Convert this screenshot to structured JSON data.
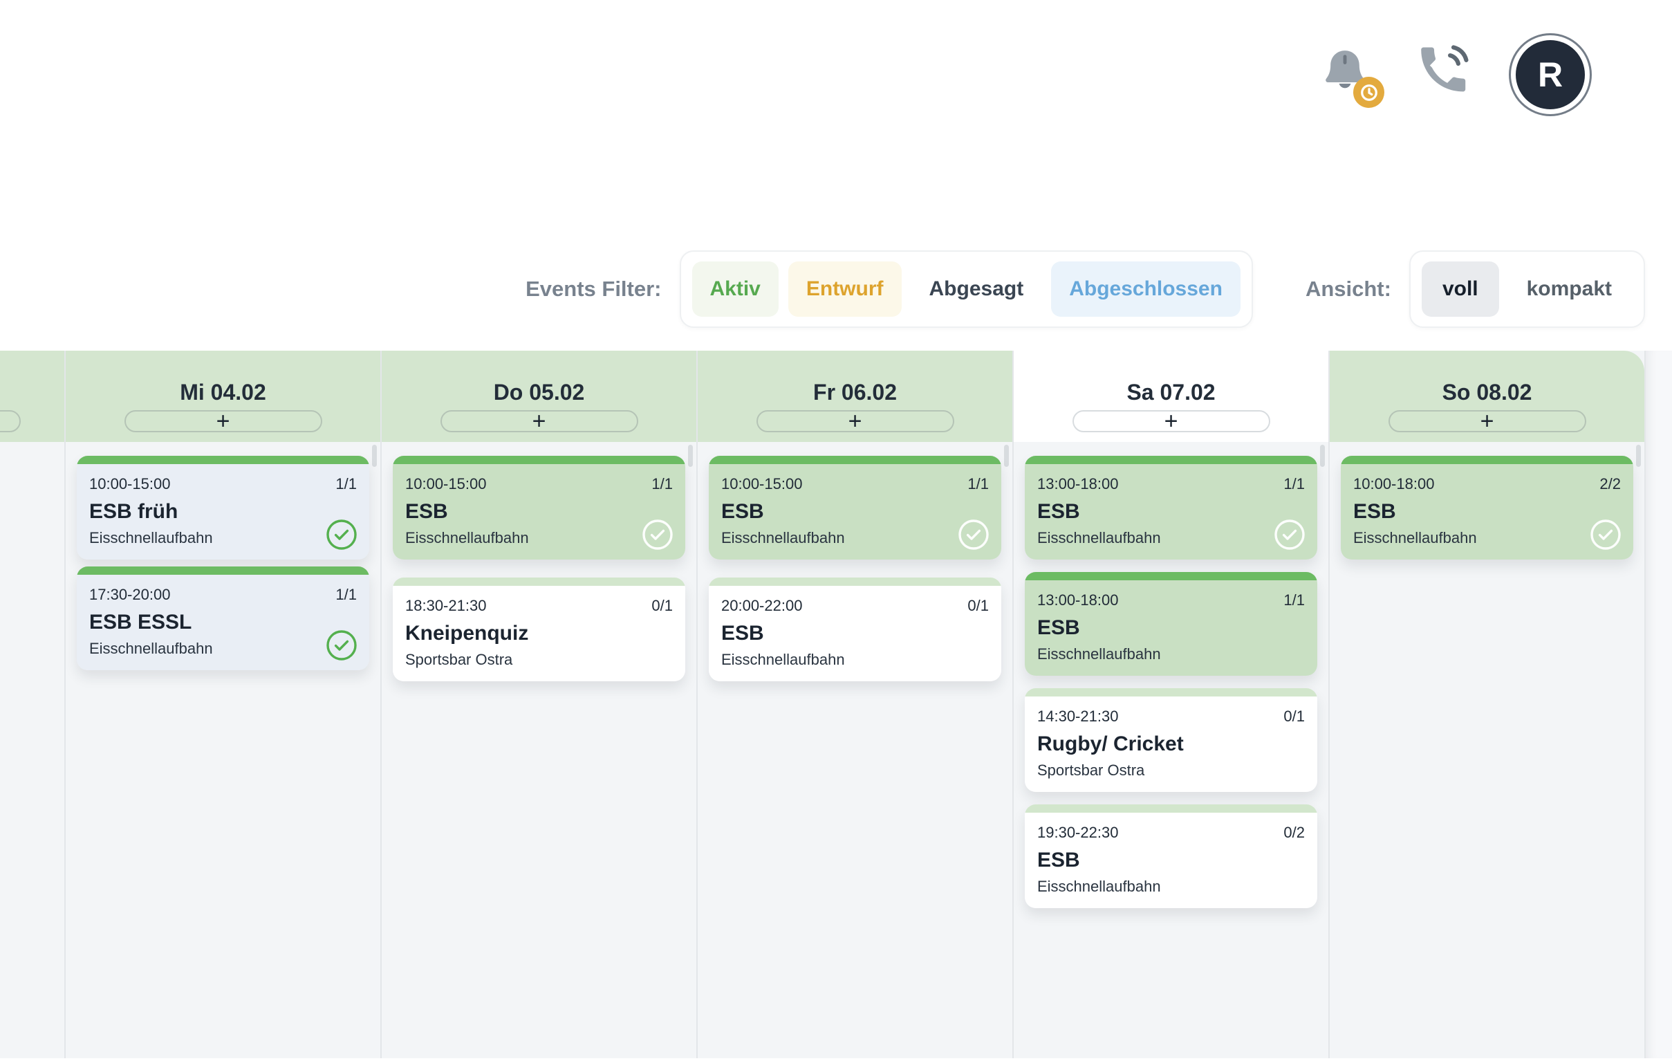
{
  "topbar": {
    "avatar_initial": "R",
    "icons": [
      {
        "name": "bell-icon",
        "badge": "clock-badge",
        "badge_color": "#e3aa3e"
      },
      {
        "name": "phone-waves-icon"
      },
      {
        "name": "avatar-circle"
      }
    ]
  },
  "filter_bar": {
    "events_filter_label": "Events Filter:",
    "filters": [
      {
        "label": "Aktiv",
        "text_color": "#56a94f",
        "bg_color": "#f3f7ee"
      },
      {
        "label": "Entwurf",
        "text_color": "#dda32d",
        "bg_color": "#fcf8e9"
      },
      {
        "label": "Abgesagt",
        "text_color": "#3a4552",
        "bg_color": "transparent"
      },
      {
        "label": "Abgeschlossen",
        "text_color": "#66a7da",
        "bg_color": "#eaf3fb"
      }
    ],
    "ansicht_label": "Ansicht:",
    "view_options": [
      {
        "label": "voll",
        "selected": true
      },
      {
        "label": "kompakt",
        "selected": false
      }
    ]
  },
  "calendar": {
    "add_button_label": "+",
    "days": [
      {
        "label": "",
        "partial": true,
        "today": false,
        "events": []
      },
      {
        "label": "Mi 04.02",
        "today": false,
        "events": [
          {
            "time": "10:00-15:00",
            "count": "1/1",
            "title": "ESB früh",
            "location": "Eisschnellaufbahn",
            "style": "completed",
            "checked": true
          },
          {
            "time": "17:30-20:00",
            "count": "1/1",
            "title": "ESB ESSL",
            "location": "Eisschnellaufbahn",
            "style": "completed",
            "checked": true
          }
        ]
      },
      {
        "label": "Do 05.02",
        "today": false,
        "events": [
          {
            "time": "10:00-15:00",
            "count": "1/1",
            "title": "ESB",
            "location": "Eisschnellaufbahn",
            "style": "confirmed",
            "checked": true
          },
          {
            "time": "18:30-21:30",
            "count": "0/1",
            "title": "Kneipenquiz",
            "location": "Sportsbar Ostra",
            "style": "open",
            "checked": false
          }
        ]
      },
      {
        "label": "Fr 06.02",
        "today": false,
        "events": [
          {
            "time": "10:00-15:00",
            "count": "1/1",
            "title": "ESB",
            "location": "Eisschnellaufbahn",
            "style": "confirmed",
            "checked": true
          },
          {
            "time": "20:00-22:00",
            "count": "0/1",
            "title": "ESB",
            "location": "Eisschnellaufbahn",
            "style": "open",
            "checked": false
          }
        ]
      },
      {
        "label": "Sa 07.02",
        "today": true,
        "events": [
          {
            "time": "13:00-18:00",
            "count": "1/1",
            "title": "ESB",
            "location": "Eisschnellaufbahn",
            "style": "confirmed",
            "checked": true
          },
          {
            "time": "13:00-18:00",
            "count": "1/1",
            "title": "ESB",
            "location": "Eisschnellaufbahn",
            "style": "confirmed",
            "checked": false
          },
          {
            "time": "14:30-21:30",
            "count": "0/1",
            "title": "Rugby/ Cricket",
            "location": "Sportsbar Ostra",
            "style": "open",
            "checked": false
          },
          {
            "time": "19:30-22:30",
            "count": "0/2",
            "title": "ESB",
            "location": "Eisschnellaufbahn",
            "style": "open",
            "checked": false
          }
        ]
      },
      {
        "label": "So 08.02",
        "today": false,
        "events": [
          {
            "time": "10:00-18:00",
            "count": "2/2",
            "title": "ESB",
            "location": "Eisschnellaufbahn",
            "style": "confirmed",
            "checked": true
          }
        ]
      }
    ]
  },
  "colors": {
    "accent_green": "#6cbb63",
    "card_green": "#c9e0c3",
    "card_completed": "#e9eef5",
    "header_green": "#d4e6cf",
    "column_bg": "#f3f5f7"
  }
}
